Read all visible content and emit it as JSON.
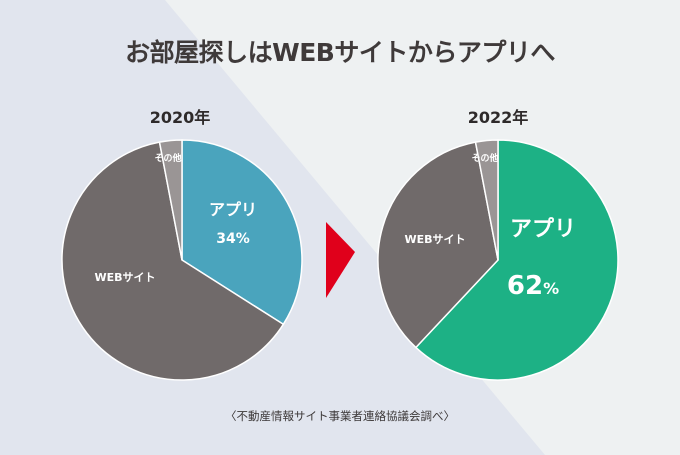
{
  "title": "お部屋探しはWEBサイトからアプリへ",
  "source": "〈不動産情報サイト事業者連絡協議会調べ〉",
  "colors": {
    "app_2020": "#4aa4bd",
    "app_2022": "#1db185",
    "web": "#706a6a",
    "other": "#9a9595",
    "arrow": "#e0001b",
    "bg_left": "#e1e5ee",
    "bg_right": "#eef1f2"
  },
  "chart_data": [
    {
      "type": "pie",
      "title": "2020年",
      "slices": [
        {
          "label": "アプリ",
          "value": 34,
          "value_label": "34%"
        },
        {
          "label": "WEBサイト",
          "value": 63
        },
        {
          "label": "その他",
          "value": 3
        }
      ]
    },
    {
      "type": "pie",
      "title": "2022年",
      "slices": [
        {
          "label": "アプリ",
          "value": 62,
          "value_label": "62",
          "unit": "%"
        },
        {
          "label": "WEBサイト",
          "value": 35
        },
        {
          "label": "その他",
          "value": 3
        }
      ]
    }
  ]
}
